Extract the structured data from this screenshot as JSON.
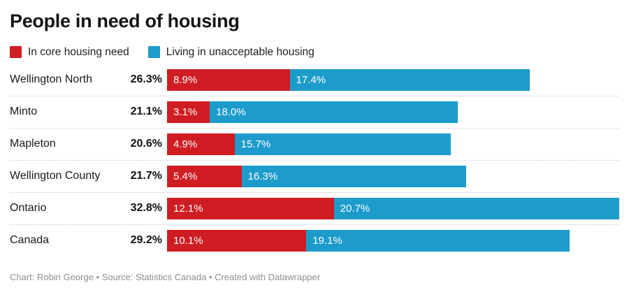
{
  "title": "People in need of housing",
  "footer": "Chart: Robin George • Source: Statistics Canada • Created with Datawrapper",
  "colors": {
    "core_need_red": "#cf1d23",
    "unacceptable_blue": "#1d9ccb",
    "separator_gray": "#c9c9c9",
    "footer_gray": "#8e8e8e"
  },
  "chart_data": {
    "type": "bar",
    "subtype": "stacked-horizontal",
    "title": "People in need of housing",
    "categories": [
      "Wellington North",
      "Minto",
      "Mapleton",
      "Wellington County",
      "Ontario",
      "Canada"
    ],
    "totals": [
      "26.3%",
      "21.1%",
      "20.6%",
      "21.7%",
      "32.8%",
      "29.2%"
    ],
    "series": [
      {
        "name": "In core housing need",
        "color": "#cf1d23",
        "values": [
          8.9,
          3.1,
          4.9,
          5.4,
          12.1,
          10.1
        ]
      },
      {
        "name": "Living in unacceptable housing",
        "color": "#1d9ccb",
        "values": [
          17.4,
          18.0,
          15.7,
          16.3,
          20.7,
          19.1
        ]
      }
    ],
    "value_label_format": "one-decimal-percent",
    "xlim": [
      0,
      32.8
    ],
    "grid": false,
    "legend_position": "top",
    "row_separators": "dotted"
  }
}
